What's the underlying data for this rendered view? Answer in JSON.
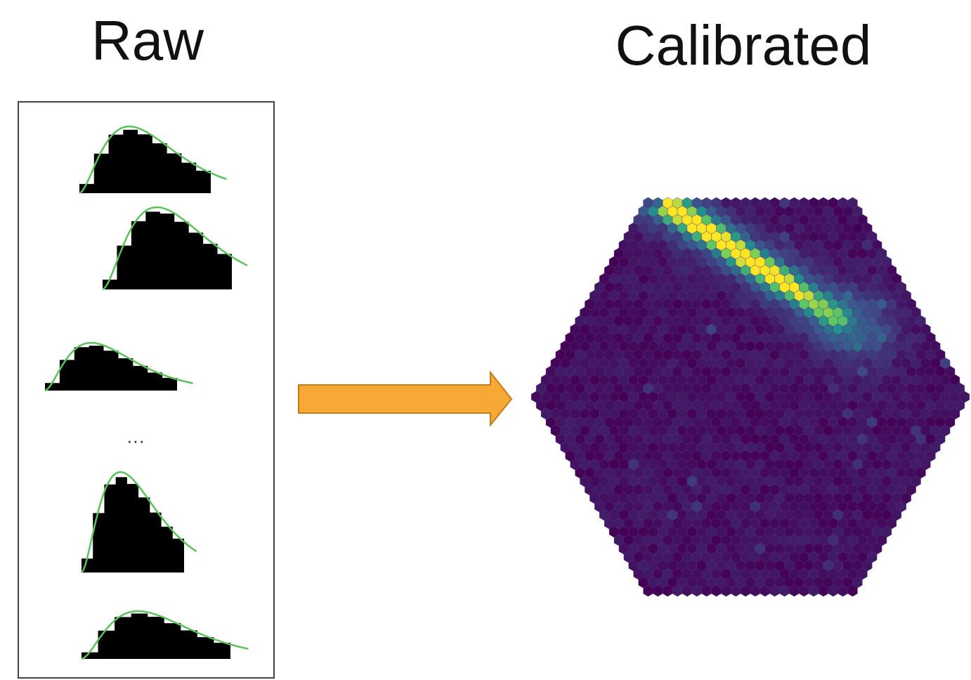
{
  "header": {
    "raw": "Raw",
    "calibrated": "Calibrated"
  },
  "ellipsis": "···"
}
